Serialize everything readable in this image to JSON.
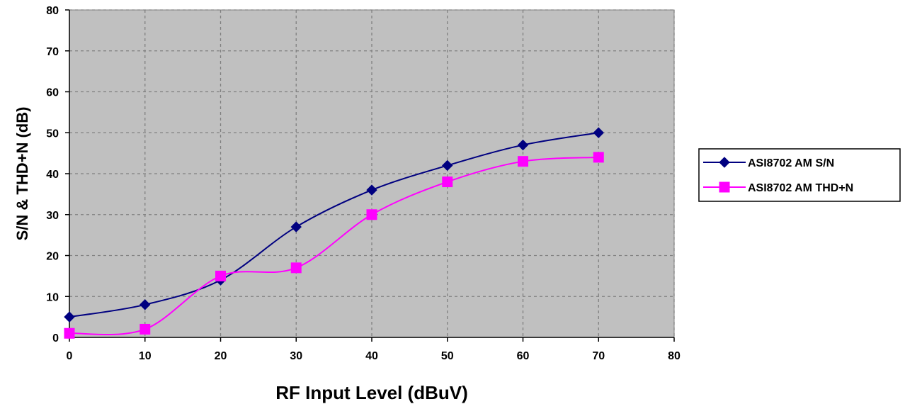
{
  "chart_data": {
    "type": "line",
    "xlabel": "RF Input Level (dBuV)",
    "ylabel": "S/N & THD+N (dB)",
    "xlim": [
      0,
      80
    ],
    "ylim": [
      0,
      80
    ],
    "x_ticks": [
      0,
      10,
      20,
      30,
      40,
      50,
      60,
      70,
      80
    ],
    "y_ticks": [
      0,
      10,
      20,
      30,
      40,
      50,
      60,
      70,
      80
    ],
    "grid": true,
    "legend_position": "right",
    "plot_background": "#c0c0c0",
    "x": [
      0,
      10,
      20,
      30,
      40,
      50,
      60,
      70
    ],
    "series": [
      {
        "name": "ASI8702 AM S/N",
        "color": "#000080",
        "marker": "diamond",
        "values": [
          5,
          8,
          14,
          27,
          36,
          42,
          47,
          50
        ]
      },
      {
        "name": "ASI8702 AM THD+N",
        "color": "#ff00ff",
        "marker": "square",
        "values": [
          1,
          2,
          15,
          17,
          30,
          38,
          43,
          44
        ]
      }
    ]
  }
}
